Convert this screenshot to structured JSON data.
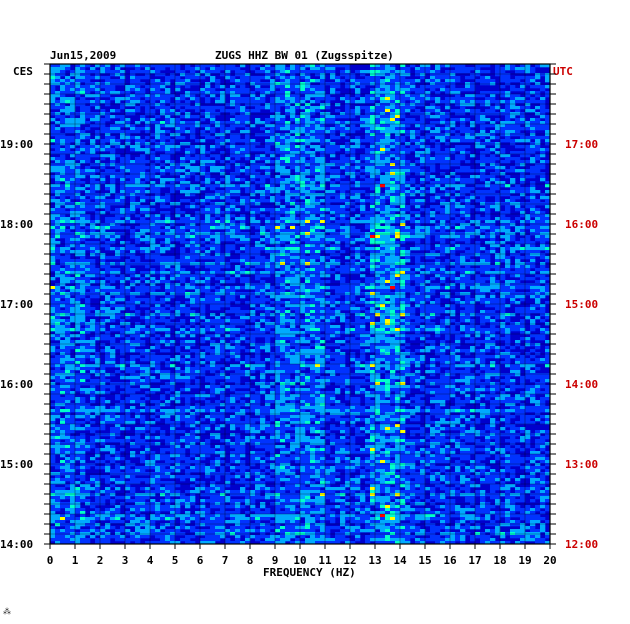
{
  "header": {
    "date": "Jun15,2009",
    "station": "ZUGS HHZ BW 01 (Zugsspitze)"
  },
  "chart_data": {
    "type": "heatmap",
    "title": "ZUGS HHZ BW 01 (Zugsspitze)",
    "xlabel": "FREQUENCY (HZ)",
    "x_ticks": [
      "0",
      "1",
      "2",
      "3",
      "4",
      "5",
      "6",
      "7",
      "8",
      "9",
      "10",
      "11",
      "12",
      "13",
      "14",
      "15",
      "16",
      "17",
      "18",
      "19",
      "20"
    ],
    "xlim": [
      0,
      20
    ],
    "left_axis": {
      "label": "CES",
      "ticks": [
        "19:00",
        "18:00",
        "17:00",
        "16:00",
        "15:00",
        "14:00"
      ],
      "color": "#000000"
    },
    "right_axis": {
      "label": "UTC",
      "ticks": [
        "17:00",
        "16:00",
        "15:00",
        "14:00",
        "13:00",
        "12:00"
      ],
      "color": "#cc0000"
    },
    "grid": true,
    "colormap": [
      "#0000cc",
      "#0033ff",
      "#00aaff",
      "#00ffcc",
      "#ffff00",
      "#ff0000"
    ]
  }
}
